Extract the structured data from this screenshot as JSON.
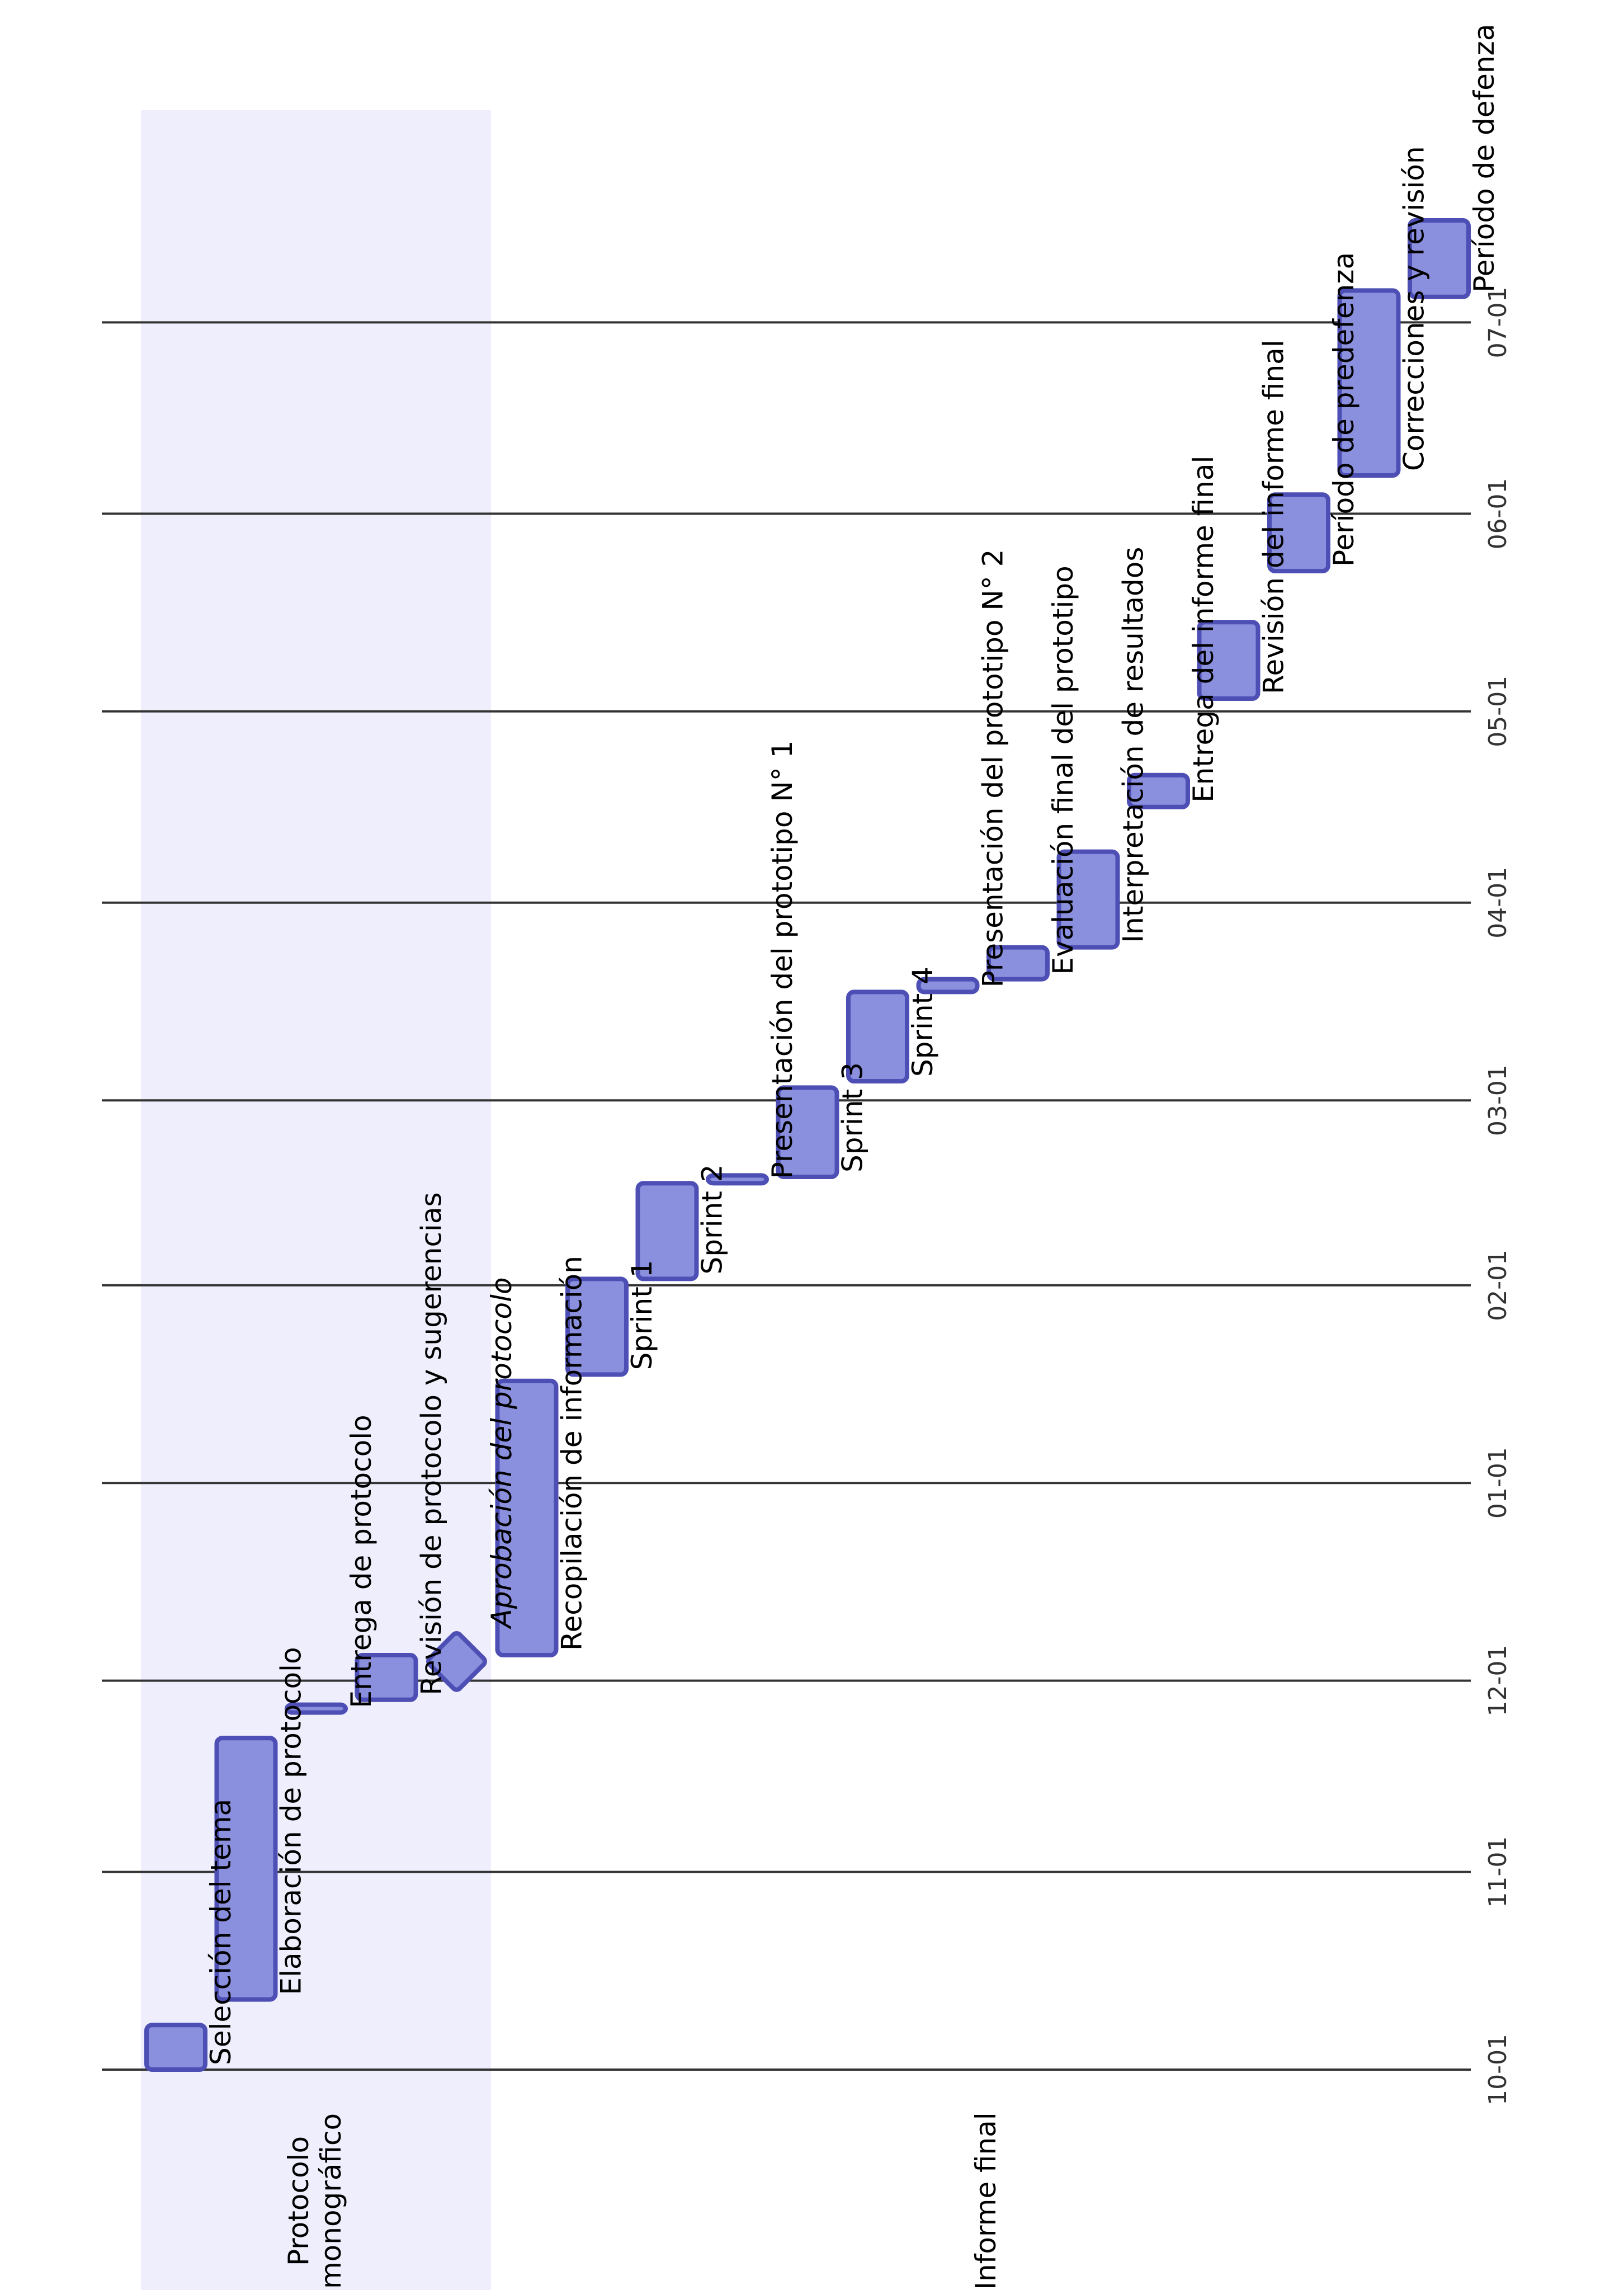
{
  "colors": {
    "bar_fill": "#8a90dd",
    "bar_stroke": "#4d4fb5",
    "section_band": "#eeeefd",
    "grid": "#333333",
    "background": "#ffffff"
  },
  "chart_data": {
    "type": "gantt",
    "orientation": "rotated 90° counter-clockwise (time axis runs upward)",
    "date_format": "MM-DD",
    "axis_ticks": [
      "10-01",
      "11-01",
      "12-01",
      "01-01",
      "02-01",
      "03-01",
      "04-01",
      "05-01",
      "06-01",
      "07-01"
    ],
    "grid": true,
    "sections": [
      {
        "name": "Protocolo\nmonográfico",
        "lines": [
          "Protocolo",
          "monográfico"
        ]
      },
      {
        "name": "Informe final",
        "lines": [
          "Informe final"
        ]
      }
    ],
    "tasks": [
      {
        "name": "Selección del tema",
        "section": 0,
        "start": "2023-10-01",
        "end": "2023-10-08",
        "type": "task"
      },
      {
        "name": "Elaboración de protocolo",
        "section": 0,
        "start": "2023-10-12",
        "end": "2023-11-22",
        "type": "task"
      },
      {
        "name": "Entrega de protocolo",
        "section": 0,
        "start": "2023-11-26",
        "end": "2023-11-27",
        "type": "task"
      },
      {
        "name": "Revisión de protocolo y sugerencias",
        "section": 0,
        "start": "2023-11-28",
        "end": "2023-12-05",
        "type": "task"
      },
      {
        "name": "Aprobación del protocolo",
        "section": 0,
        "start": "2023-12-04",
        "end": "2023-12-04",
        "type": "milestone"
      },
      {
        "name": "Recopilación de información",
        "section": 1,
        "start": "2023-12-05",
        "end": "2024-01-17",
        "type": "task"
      },
      {
        "name": "Sprint 1",
        "section": 1,
        "start": "2024-01-18",
        "end": "2024-02-02",
        "type": "task"
      },
      {
        "name": "Sprint 2",
        "section": 1,
        "start": "2024-02-02",
        "end": "2024-02-17",
        "type": "task"
      },
      {
        "name": "Presentación del prototipo N° 1",
        "section": 1,
        "start": "2024-02-17",
        "end": "2024-02-18",
        "type": "task"
      },
      {
        "name": "Sprint 3",
        "section": 1,
        "start": "2024-02-18",
        "end": "2024-03-03",
        "type": "task"
      },
      {
        "name": "Sprint 4",
        "section": 1,
        "start": "2024-03-04",
        "end": "2024-03-18",
        "type": "task"
      },
      {
        "name": "Presentación del prototipo N° 2",
        "section": 1,
        "start": "2024-03-18",
        "end": "2024-03-20",
        "type": "task"
      },
      {
        "name": "Evaluación final del prototipo",
        "section": 1,
        "start": "2024-03-20",
        "end": "2024-03-25",
        "type": "task"
      },
      {
        "name": "Interpretación de resultados",
        "section": 1,
        "start": "2024-03-25",
        "end": "2024-04-09",
        "type": "task"
      },
      {
        "name": "Entrega del informe final",
        "section": 1,
        "start": "2024-04-16",
        "end": "2024-04-21",
        "type": "task"
      },
      {
        "name": "Revisión del informe final",
        "section": 1,
        "start": "2024-05-03",
        "end": "2024-05-15",
        "type": "task"
      },
      {
        "name": "Período de predefenza",
        "section": 1,
        "start": "2024-05-23",
        "end": "2024-06-04",
        "type": "task"
      },
      {
        "name": "Correcciones y revisión",
        "section": 1,
        "start": "2024-06-07",
        "end": "2024-07-06",
        "type": "task"
      },
      {
        "name": "Período de defenza",
        "section": 1,
        "start": "2024-07-05",
        "end": "2024-07-17",
        "type": "task"
      }
    ]
  }
}
